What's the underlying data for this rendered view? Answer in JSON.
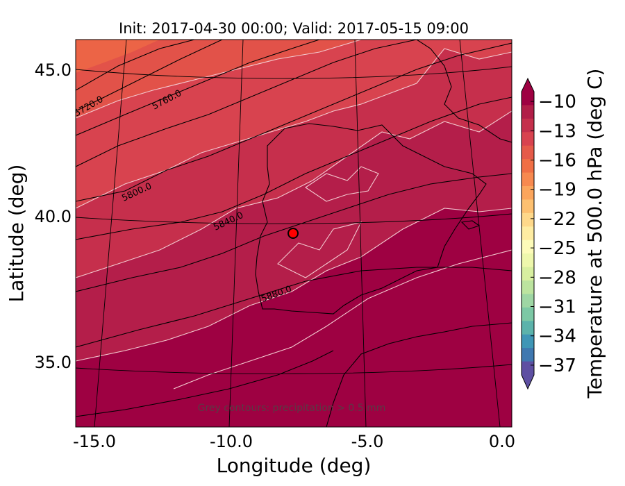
{
  "title": "Init: 2017-04-30 00:00; Valid: 2017-05-15 09:00",
  "xlabel": "Longitude (deg)",
  "ylabel": "Latitude (deg)",
  "x_ticks": [
    "-15.0",
    "-10.0",
    "-5.0",
    "0.0"
  ],
  "y_ticks": [
    "45.0",
    "40.0",
    "35.0"
  ],
  "x_tick_values": [
    -15,
    -10,
    -5,
    0
  ],
  "y_tick_values": [
    45,
    40,
    35
  ],
  "extent": {
    "lon": [
      -16,
      0.3
    ],
    "lat": [
      32.6,
      46.0
    ]
  },
  "contours": {
    "levels": [
      5720,
      5760,
      5800,
      5840,
      5880
    ],
    "labels": [
      "5720.0",
      "5760.0",
      "5800.0",
      "5840.0",
      "5880.0"
    ]
  },
  "note": "Grey contours: precipitation > 0.5 mm",
  "marker": {
    "lon": -7.6,
    "lat": 39.4,
    "color": "#ff0000"
  },
  "colorbar": {
    "label": "Temperature at 500.0 hPa (deg C)",
    "ticks": [
      "−10",
      "−13",
      "−16",
      "−19",
      "−22",
      "−25",
      "−28",
      "−31",
      "−34",
      "−37"
    ],
    "tick_values": [
      -10,
      -13,
      -16,
      -19,
      -22,
      -25,
      -28,
      -31,
      -34,
      -37
    ],
    "range": [
      -38,
      -9
    ],
    "colors_top_to_bottom": [
      "#9e0142",
      "#b11e48",
      "#c5304c",
      "#d8434f",
      "#e55a49",
      "#f06f45",
      "#f7894f",
      "#fba55c",
      "#fdc070",
      "#fed88a",
      "#feeca2",
      "#fdfbb9",
      "#eef7ac",
      "#d8efa0",
      "#bce49f",
      "#9ed6a4",
      "#7cc8a5",
      "#5cb3ab",
      "#3f96b6",
      "#3f78b0",
      "#5e4fa2"
    ]
  }
}
